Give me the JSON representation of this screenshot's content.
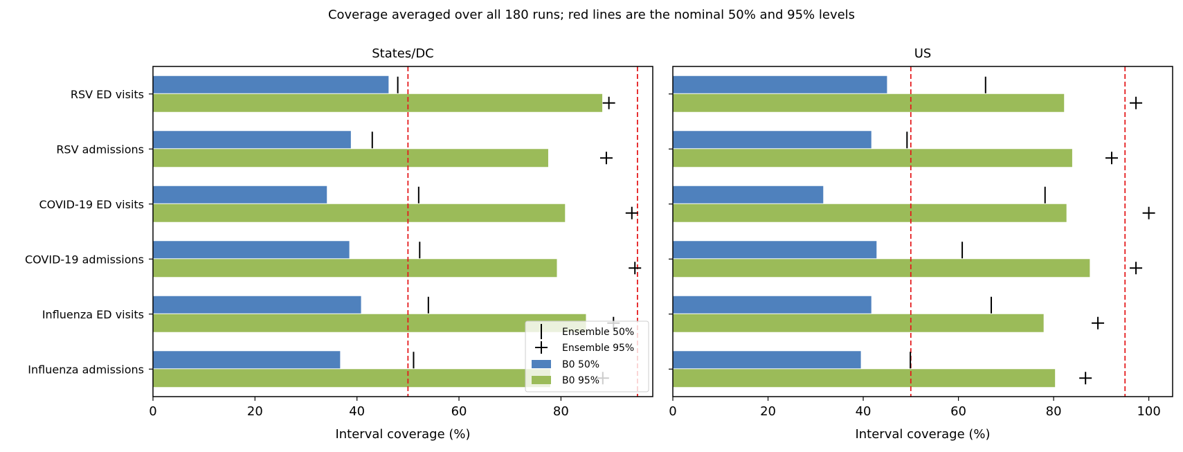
{
  "suptitle": "Coverage averaged over all 180 runs; red lines are the nominal 50% and 95% levels",
  "colors": {
    "b0_50": "#4f81bd",
    "b0_95": "#9bbb59",
    "nominal_line": "#e41a1c",
    "ensemble_marker": "#000000"
  },
  "chart_data": [
    {
      "type": "bar",
      "orientation": "horizontal",
      "title": "States/DC",
      "xlabel": "Interval coverage (%)",
      "xlim": [
        0,
        98
      ],
      "xticks": [
        0,
        20,
        40,
        60,
        80
      ],
      "categories": [
        "RSV ED visits",
        "RSV admissions",
        "COVID-19 ED visits",
        "COVID-19 admissions",
        "Influenza ED visits",
        "Influenza admissions"
      ],
      "series": [
        {
          "name": "B0 50%",
          "kind": "bar",
          "values": [
            46.2,
            38.8,
            34.1,
            38.5,
            40.8,
            36.7
          ]
        },
        {
          "name": "B0 95%",
          "kind": "bar",
          "values": [
            88.1,
            77.5,
            80.8,
            79.2,
            84.9,
            77.9
          ]
        },
        {
          "name": "Ensemble 50%",
          "kind": "marker",
          "marker": "vline",
          "values": [
            48.0,
            43.0,
            52.1,
            52.3,
            54.0,
            51.1
          ]
        },
        {
          "name": "Ensemble 95%",
          "kind": "marker",
          "marker": "plus",
          "values": [
            89.4,
            88.9,
            93.9,
            94.5,
            90.3,
            88.2
          ]
        }
      ],
      "reference_lines": [
        50,
        95
      ],
      "legend": {
        "placement": "lower-right",
        "entries": [
          "Ensemble 50%",
          "Ensemble 95%",
          "B0 50%",
          "B0 95%"
        ]
      }
    },
    {
      "type": "bar",
      "orientation": "horizontal",
      "title": "US",
      "xlabel": "Interval coverage (%)",
      "xlim": [
        0,
        105
      ],
      "xticks": [
        0,
        20,
        40,
        60,
        80,
        100
      ],
      "categories": [
        "RSV ED visits",
        "RSV admissions",
        "COVID-19 ED visits",
        "COVID-19 admissions",
        "Influenza ED visits",
        "Influenza admissions"
      ],
      "series": [
        {
          "name": "B0 50%",
          "kind": "bar",
          "values": [
            45.0,
            41.7,
            31.6,
            42.8,
            41.7,
            39.5
          ]
        },
        {
          "name": "B0 95%",
          "kind": "bar",
          "values": [
            82.2,
            83.9,
            82.7,
            87.6,
            77.9,
            80.3
          ]
        },
        {
          "name": "Ensemble 50%",
          "kind": "marker",
          "marker": "vline",
          "values": [
            65.7,
            49.2,
            78.2,
            60.8,
            66.9,
            49.9
          ]
        },
        {
          "name": "Ensemble 95%",
          "kind": "marker",
          "marker": "plus",
          "values": [
            97.3,
            92.2,
            100.0,
            97.3,
            89.3,
            86.7
          ]
        }
      ],
      "reference_lines": [
        50,
        95
      ]
    }
  ]
}
